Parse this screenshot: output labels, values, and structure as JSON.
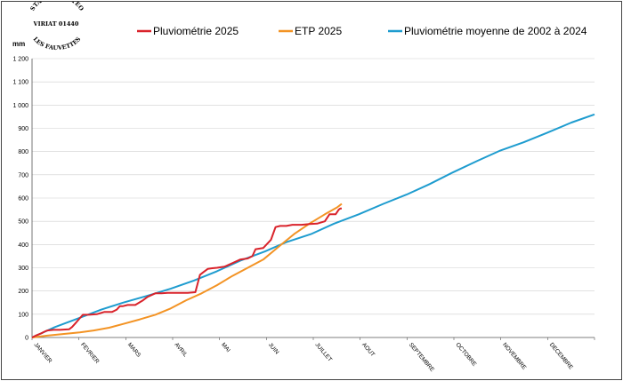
{
  "stamp": {
    "line1": "STATION METEO",
    "line2": "VIRIAT 01440",
    "line3": "LES FAUVETTES"
  },
  "chart_data": {
    "type": "line",
    "ylabel": "mm",
    "ylim": [
      0,
      1200
    ],
    "yticks": [
      "0",
      "100",
      "200",
      "300",
      "400",
      "500",
      "600",
      "700",
      "800",
      "900",
      "1 000",
      "1 100",
      "1 200"
    ],
    "months": [
      "JANVIER",
      "FEVRIER",
      "MARS",
      "AVRIL",
      "MAI",
      "JUIN",
      "JUILLET",
      "AOUT",
      "SEPTEMBRE",
      "OCTOBRE",
      "NOVEMBRE",
      "DECEMBRE"
    ],
    "grid": "horizontal",
    "legend_position": "top",
    "series": [
      {
        "name": "Pluviométrie 2025",
        "color": "#d9232b",
        "x": [
          0,
          3,
          6,
          8,
          10,
          14,
          18,
          24,
          26,
          28,
          30,
          33,
          37,
          42,
          47,
          52,
          55,
          57,
          59,
          62,
          67,
          72,
          75,
          80,
          84,
          88,
          92,
          97,
          101,
          106,
          109,
          111,
          114,
          117,
          120,
          125,
          130,
          135,
          140,
          143,
          145,
          150,
          155,
          158,
          161,
          165,
          169,
          170,
          172,
          175,
          180,
          185,
          190,
          193,
          194,
          197,
          199,
          200,
          201
        ],
        "values": [
          0,
          10,
          18,
          25,
          30,
          33,
          33,
          35,
          45,
          60,
          75,
          98,
          98,
          100,
          110,
          110,
          120,
          135,
          135,
          140,
          140,
          160,
          175,
          190,
          190,
          192,
          192,
          192,
          192,
          195,
          270,
          280,
          295,
          298,
          300,
          305,
          320,
          335,
          340,
          350,
          380,
          385,
          420,
          475,
          480,
          480,
          485,
          485,
          485,
          485,
          488,
          490,
          500,
          530,
          530,
          530,
          550,
          555,
          555
        ]
      },
      {
        "name": "ETP 2025",
        "color": "#f39324",
        "x": [
          0,
          10,
          20,
          31,
          40,
          50,
          59,
          70,
          80,
          90,
          100,
          110,
          120,
          130,
          140,
          150,
          160,
          170,
          180,
          190,
          198,
          201
        ],
        "values": [
          0,
          8,
          15,
          22,
          30,
          42,
          58,
          78,
          98,
          125,
          160,
          190,
          225,
          265,
          300,
          335,
          390,
          445,
          490,
          530,
          560,
          575
        ]
      },
      {
        "name": "Pluviométrie moyenne de 2002 à 2024",
        "color": "#1e9ccf",
        "x": [
          0,
          15,
          31,
          45,
          59,
          75,
          90,
          105,
          120,
          135,
          151,
          165,
          181,
          196,
          212,
          228,
          243,
          258,
          273,
          289,
          304,
          319,
          334,
          350,
          365
        ],
        "values": [
          0,
          45,
          85,
          120,
          150,
          180,
          210,
          245,
          285,
          330,
          370,
          410,
          445,
          490,
          530,
          575,
          615,
          660,
          710,
          760,
          805,
          840,
          880,
          925,
          960
        ]
      }
    ]
  }
}
